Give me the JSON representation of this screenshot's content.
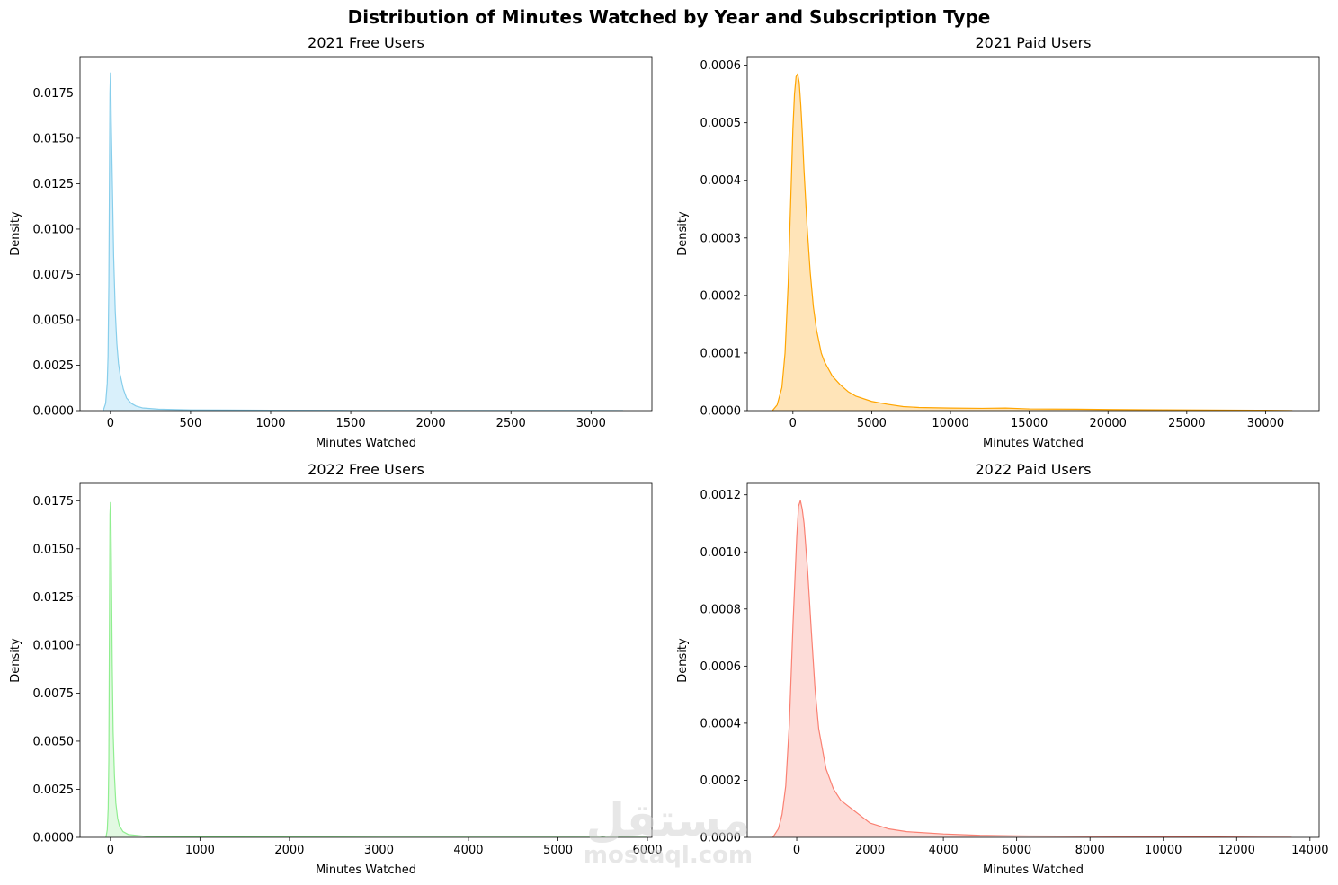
{
  "title": "Distribution of Minutes Watched by Year and Subscription Type",
  "watermark": {
    "main": "مستقل",
    "sub": "mostaql.com"
  },
  "chart_data": [
    {
      "type": "area",
      "title": "2021 Free Users",
      "xlabel": "Minutes Watched",
      "ylabel": "Density",
      "color": "#87ceeb",
      "fill": "#d9f0fb",
      "xlim": [
        -190,
        3380
      ],
      "ylim": [
        0,
        0.0195
      ],
      "xticks": [
        0,
        500,
        1000,
        1500,
        2000,
        2500,
        3000
      ],
      "xtick_labels": [
        "0",
        "500",
        "1000",
        "1500",
        "2000",
        "2500",
        "3000"
      ],
      "yticks": [
        0,
        0.0025,
        0.005,
        0.0075,
        0.01,
        0.0125,
        0.015,
        0.0175
      ],
      "ytick_labels": [
        "0.0000",
        "0.0025",
        "0.0050",
        "0.0075",
        "0.0100",
        "0.0125",
        "0.0150",
        "0.0175"
      ],
      "x": [
        -45,
        -30,
        -20,
        -15,
        -10,
        -6,
        -3,
        0,
        2,
        5,
        10,
        20,
        30,
        40,
        50,
        60,
        80,
        100,
        130,
        160,
        200,
        300,
        500,
        1000,
        1500,
        2000,
        2500,
        3000,
        3200
      ],
      "y": [
        0,
        0.0004,
        0.0015,
        0.003,
        0.007,
        0.013,
        0.0175,
        0.0186,
        0.0182,
        0.016,
        0.0135,
        0.0085,
        0.0055,
        0.0037,
        0.0026,
        0.002,
        0.0012,
        0.0007,
        0.0004,
        0.00025,
        0.00015,
        8e-05,
        4e-05,
        2e-05,
        1e-05,
        1e-05,
        1e-05,
        5e-06,
        0
      ]
    },
    {
      "type": "area",
      "title": "2021 Paid Users",
      "xlabel": "Minutes Watched",
      "ylabel": "Density",
      "color": "#ffa500",
      "fill": "#ffe4b8",
      "xlim": [
        -2900,
        33400
      ],
      "ylim": [
        0,
        0.000615
      ],
      "xticks": [
        0,
        5000,
        10000,
        15000,
        20000,
        25000,
        30000
      ],
      "xtick_labels": [
        "0",
        "5000",
        "10000",
        "15000",
        "20000",
        "25000",
        "30000"
      ],
      "yticks": [
        0,
        0.0001,
        0.0002,
        0.0003,
        0.0004,
        0.0005,
        0.0006
      ],
      "ytick_labels": [
        "0.0000",
        "0.0001",
        "0.0002",
        "0.0003",
        "0.0004",
        "0.0005",
        "0.0006"
      ],
      "x": [
        -1300,
        -1000,
        -700,
        -500,
        -300,
        -100,
        0,
        100,
        200,
        300,
        400,
        500,
        600,
        700,
        900,
        1100,
        1300,
        1500,
        1800,
        2000,
        2500,
        3000,
        3500,
        4000,
        5000,
        6000,
        7000,
        8000,
        10000,
        12000,
        13500,
        15000,
        18000,
        20000,
        25000,
        30000,
        31700
      ],
      "y": [
        0,
        1e-05,
        4e-05,
        0.0001,
        0.00022,
        0.0004,
        0.00049,
        0.00055,
        0.00058,
        0.000585,
        0.00057,
        0.00053,
        0.00048,
        0.00042,
        0.00032,
        0.00024,
        0.00018,
        0.00014,
        0.0001,
        8.5e-05,
        6e-05,
        4.5e-05,
        3.3e-05,
        2.5e-05,
        1.6e-05,
        1.1e-05,
        7e-06,
        5.5e-06,
        4.5e-06,
        4e-06,
        4.5e-06,
        3e-06,
        2.5e-06,
        2e-06,
        1.2e-06,
        6e-07,
        0
      ]
    },
    {
      "type": "area",
      "title": "2022 Free Users",
      "xlabel": "Minutes Watched",
      "ylabel": "Density",
      "color": "#90ee90",
      "fill": "#e2f9e2",
      "xlim": [
        -340,
        6050
      ],
      "ylim": [
        0,
        0.0184
      ],
      "xticks": [
        0,
        1000,
        2000,
        3000,
        4000,
        5000,
        6000
      ],
      "xtick_labels": [
        "0",
        "1000",
        "2000",
        "3000",
        "4000",
        "5000",
        "6000"
      ],
      "yticks": [
        0,
        0.0025,
        0.005,
        0.0075,
        0.01,
        0.0125,
        0.015,
        0.0175
      ],
      "ytick_labels": [
        "0.0000",
        "0.0025",
        "0.0050",
        "0.0075",
        "0.0100",
        "0.0125",
        "0.0150",
        "0.0175"
      ],
      "x": [
        -50,
        -35,
        -25,
        -18,
        -10,
        -5,
        0,
        5,
        10,
        20,
        30,
        45,
        60,
        80,
        100,
        140,
        200,
        400,
        1000,
        3000,
        5000,
        6000
      ],
      "y": [
        0,
        0.0004,
        0.0015,
        0.004,
        0.012,
        0.0168,
        0.0174,
        0.0168,
        0.0145,
        0.009,
        0.0055,
        0.0032,
        0.0018,
        0.001,
        0.0006,
        0.0003,
        0.00015,
        5e-05,
        2e-05,
        1e-05,
        5e-06,
        0
      ]
    },
    {
      "type": "area",
      "title": "2022 Paid Users",
      "xlabel": "Minutes Watched",
      "ylabel": "Density",
      "color": "#fa8072",
      "fill": "#fddcd8",
      "xlim": [
        -1350,
        14250
      ],
      "ylim": [
        0,
        0.00124
      ],
      "xticks": [
        0,
        2000,
        4000,
        6000,
        8000,
        10000,
        12000,
        14000
      ],
      "xtick_labels": [
        "0",
        "2000",
        "4000",
        "6000",
        "8000",
        "10000",
        "12000",
        "14000"
      ],
      "yticks": [
        0,
        0.0002,
        0.0004,
        0.0006,
        0.0008,
        0.001,
        0.0012
      ],
      "ytick_labels": [
        "0.0000",
        "0.0002",
        "0.0004",
        "0.0006",
        "0.0008",
        "0.0010",
        "0.0012"
      ],
      "x": [
        -650,
        -500,
        -400,
        -300,
        -200,
        -100,
        0,
        50,
        100,
        150,
        200,
        300,
        400,
        500,
        600,
        800,
        1000,
        1200,
        1400,
        1500,
        1700,
        2000,
        2500,
        3000,
        4000,
        5000,
        6000,
        8000,
        10000,
        12000,
        13500
      ],
      "y": [
        0,
        3e-05,
        8e-05,
        0.00018,
        0.0004,
        0.00075,
        0.00105,
        0.00116,
        0.00118,
        0.00115,
        0.0011,
        0.00093,
        0.00072,
        0.00052,
        0.00038,
        0.00024,
        0.00017,
        0.00013,
        0.00011,
        0.0001,
        8e-05,
        5e-05,
        3e-05,
        2e-05,
        1.2e-05,
        7e-06,
        5e-06,
        4e-06,
        2.5e-06,
        1e-06,
        0
      ]
    }
  ]
}
